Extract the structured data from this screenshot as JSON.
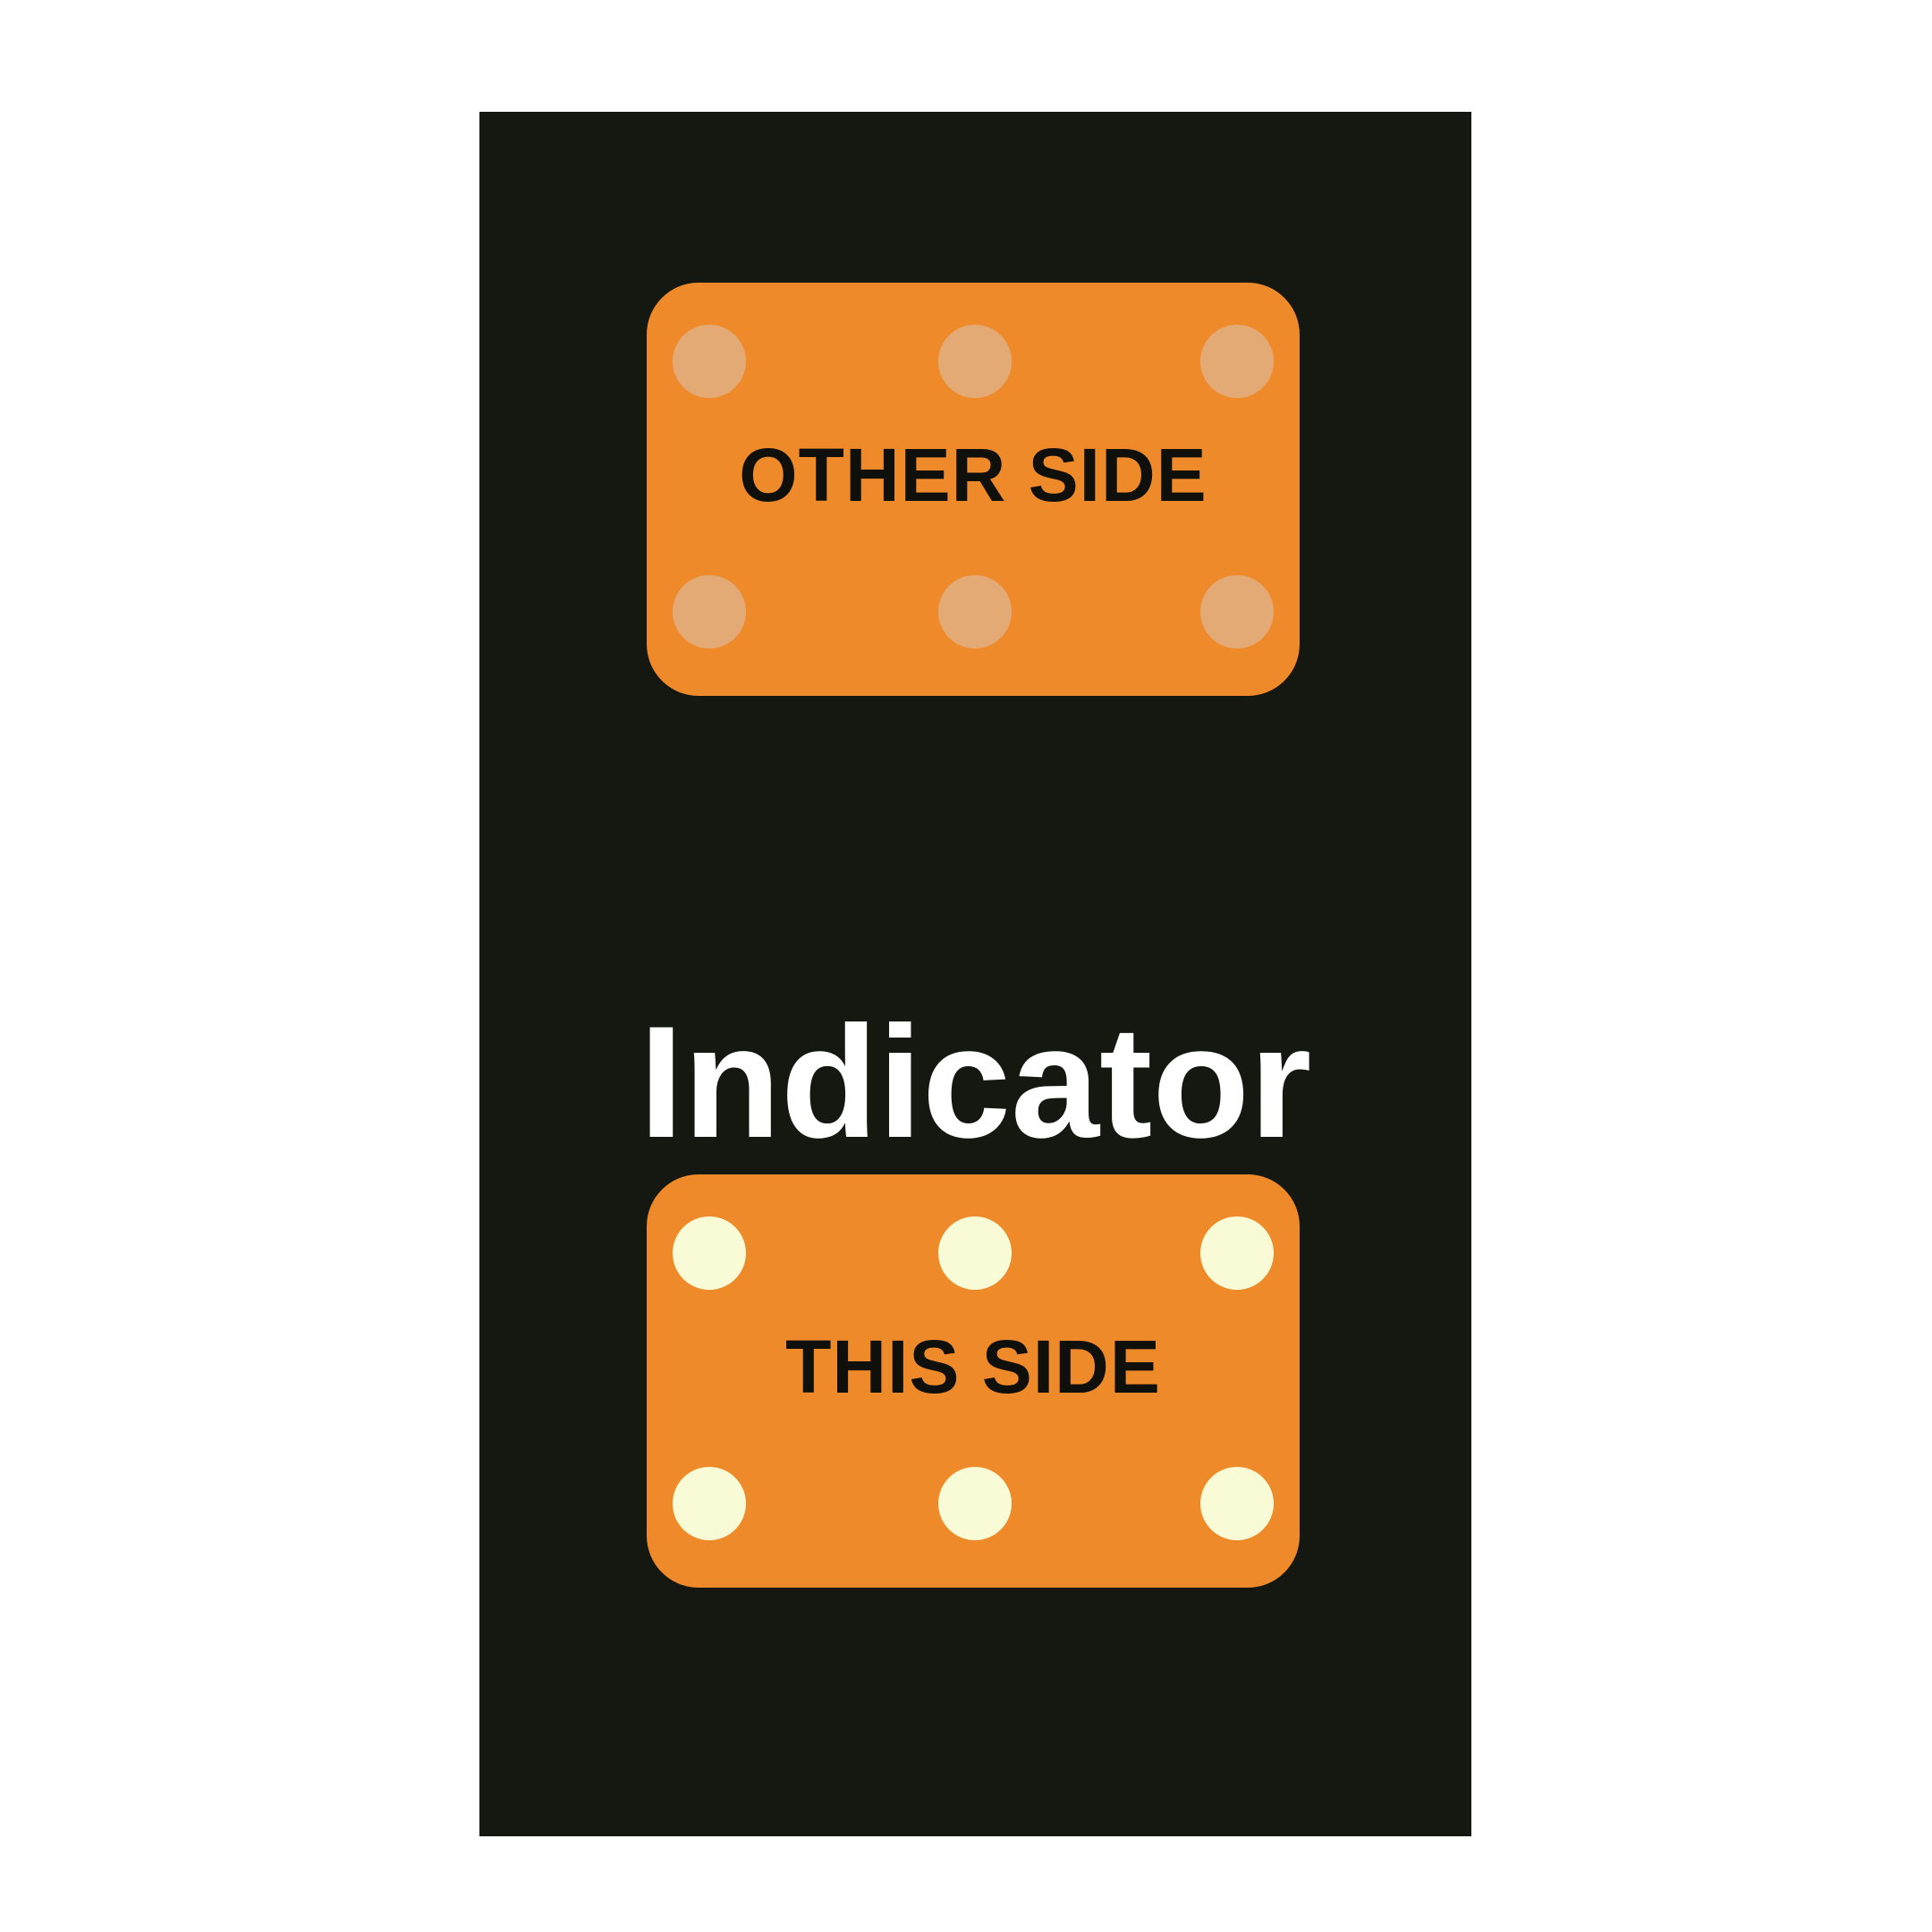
{
  "title": "Indicator",
  "indicators": {
    "other_side": {
      "label": "OTHER SIDE",
      "state": "off"
    },
    "this_side": {
      "label": "THIS SIDE",
      "state": "on"
    }
  },
  "colors": {
    "panel": "#151711",
    "indicator": "#ef8a2a",
    "light_off": "#e3aa76",
    "light_on": "#f8fbd6",
    "title": "#ffffff",
    "label": "#0f0f0c"
  }
}
